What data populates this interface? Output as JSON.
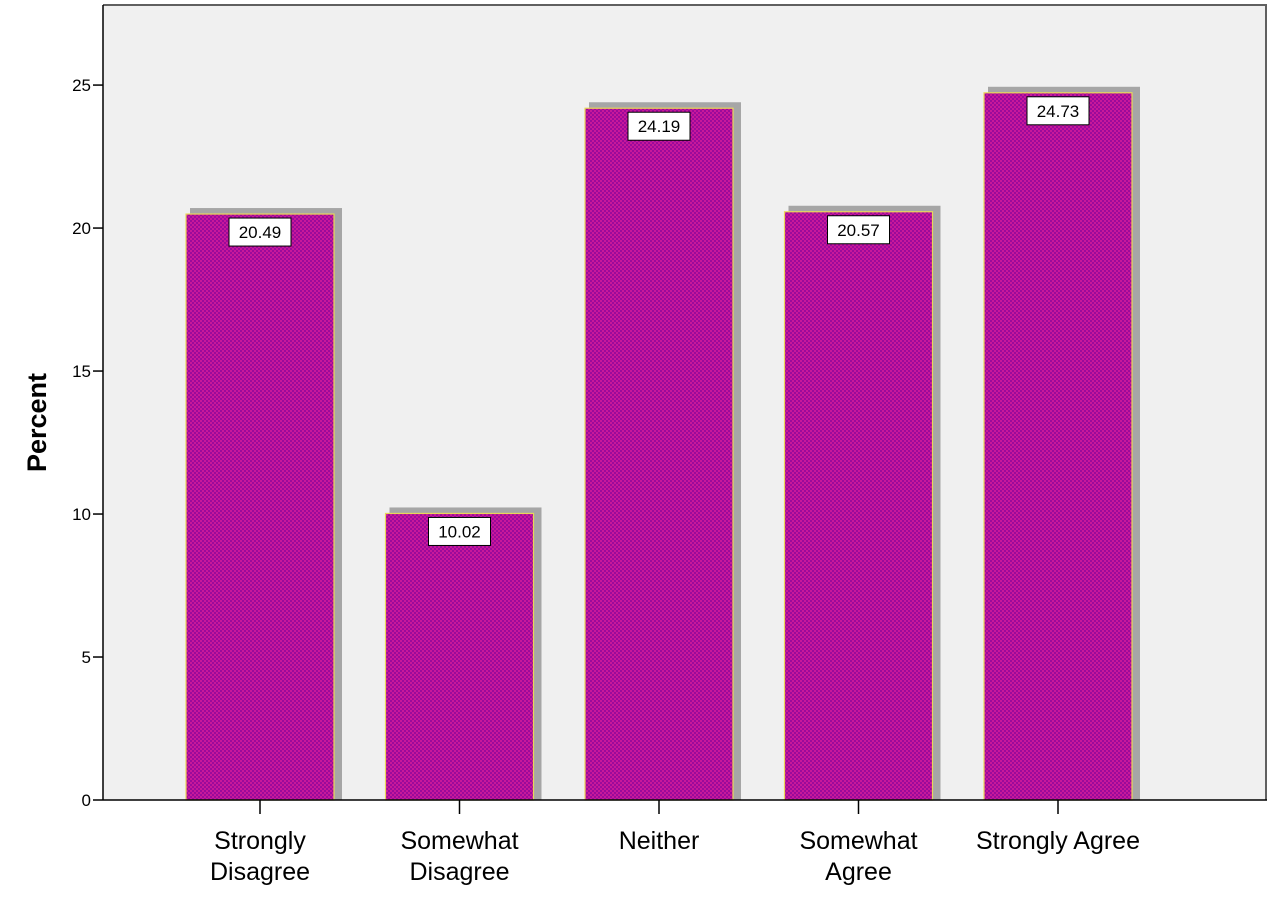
{
  "chart_data": {
    "type": "bar",
    "categories": [
      [
        "Strongly",
        "Disagree"
      ],
      [
        "Somewhat",
        "Disagree"
      ],
      [
        "Neither"
      ],
      [
        "Somewhat",
        "Agree"
      ],
      [
        "Strongly Agree"
      ]
    ],
    "values": [
      20.49,
      10.02,
      24.19,
      20.57,
      24.73
    ],
    "value_labels": [
      "20.49",
      "10.02",
      "24.19",
      "20.57",
      "24.73"
    ],
    "ylabel": "Percent",
    "xlabel": "",
    "ylim": [
      0,
      27.8
    ],
    "yticks": [
      0,
      5,
      10,
      15,
      20,
      25
    ],
    "grid": false,
    "legend": "none",
    "colors": {
      "plot_background": "#f0f0f0",
      "bar_fill": "#9b0a9b",
      "bar_pattern": "#c8189a",
      "bar_outline": "#e8d75a",
      "bar_shadow": "#a6a6a6",
      "axis": "#000000",
      "frame": "#606060"
    }
  }
}
